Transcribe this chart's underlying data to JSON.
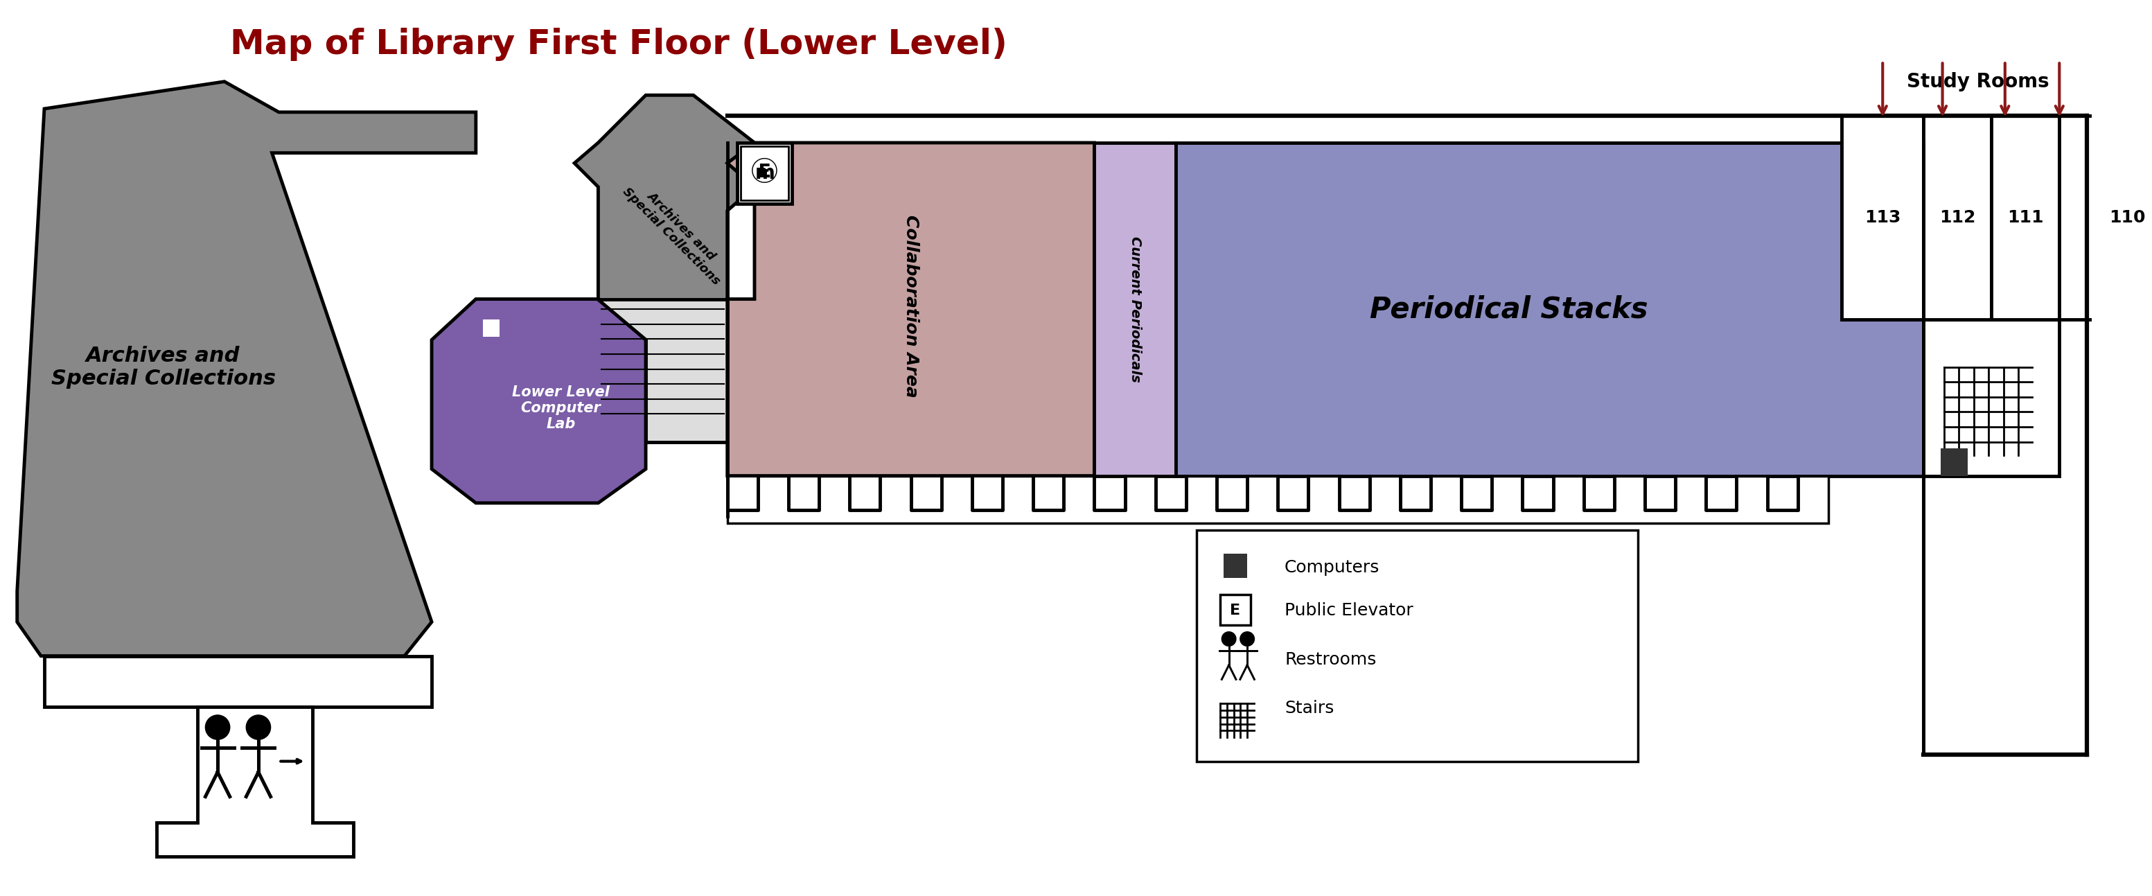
{
  "title": "Map of Library First Floor (Lower Level)",
  "title_color": "#8B0000",
  "title_fontsize": 36,
  "background_color": "#ffffff",
  "colors": {
    "gray": "#888888",
    "dark_gray": "#555555",
    "purple": "#7B5EA7",
    "light_purple": "#C4B0D8",
    "blue_purple": "#8B8DC0",
    "mauve": "#C4A0A0",
    "white": "#ffffff",
    "black": "#000000",
    "dark_red": "#8B1A1A"
  },
  "legend_items": [
    {
      "symbol": "square",
      "color": "#333333",
      "label": "Computers"
    },
    {
      "symbol": "elevator",
      "color": "#333333",
      "label": "Public Elevator"
    },
    {
      "symbol": "restrooms",
      "color": "#333333",
      "label": "Restrooms"
    },
    {
      "symbol": "stairs",
      "color": "#333333",
      "label": "Stairs"
    }
  ],
  "study_rooms": [
    "113",
    "112",
    "111",
    "110"
  ],
  "room_label": "Study Rooms"
}
